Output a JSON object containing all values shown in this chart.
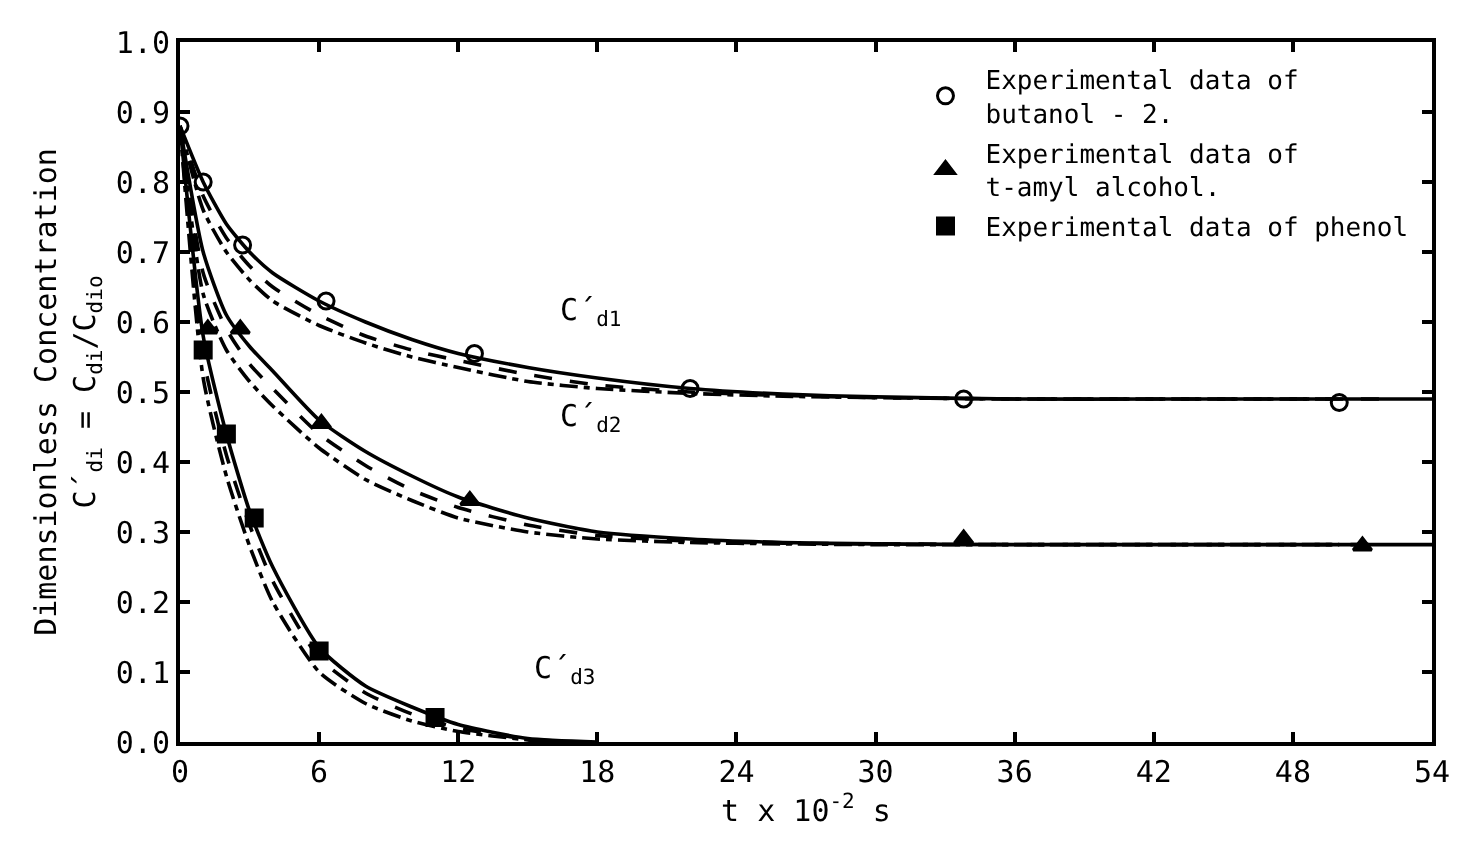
{
  "chart_data": {
    "type": "line",
    "xlabel": "t x 10$^{-2}$ s",
    "ylabel": "Dimensionless Concentration\nC´$_{di}$ = C$_{di}$/C$_{dio}$",
    "xlim": [
      0,
      54
    ],
    "xticks": [
      0,
      6,
      12,
      18,
      24,
      30,
      36,
      42,
      48,
      54
    ],
    "ylim": [
      0,
      1.0
    ],
    "yticks": [
      {
        "value": 0,
        "label": "0.0"
      },
      {
        "value": 0.1,
        "label": "0.1"
      },
      {
        "value": 0.2,
        "label": "0.2"
      },
      {
        "value": 0.3,
        "label": "0.3"
      },
      {
        "value": 0.4,
        "label": "0.4"
      },
      {
        "value": 0.5,
        "label": "0.5"
      },
      {
        "value": 0.6,
        "label": "0.6"
      },
      {
        "value": 0.7,
        "label": "0.7"
      },
      {
        "value": 0.8,
        "label": "0.8"
      },
      {
        "value": 0.9,
        "label": "0.9"
      },
      {
        "value": 1.0,
        "label": "1.0"
      }
    ],
    "legend": "top right",
    "annotations": [
      "C´$_{d1}$",
      "C´$_{d2}$",
      "C´$_{d3}$"
    ],
    "series": [
      {
        "type": "scatter",
        "name": "Experimental data of\nbutanol - 2.",
        "marker": "circle-open",
        "color": "#000000",
        "x": [
          0,
          1,
          2.7,
          6.3,
          12.7,
          22,
          33.8,
          50
        ],
        "values": [
          0.88,
          0.8,
          0.71,
          0.63,
          0.555,
          0.505,
          0.49,
          0.485
        ]
      },
      {
        "type": "scatter",
        "name": "Experimental data of\nt-amyl alcohol.",
        "marker": "triangle",
        "color": "#000000",
        "x": [
          1.2,
          2.6,
          6.1,
          12.5,
          22,
          33.8,
          51
        ],
        "values": [
          0.59,
          0.59,
          0.455,
          0.345,
          null,
          0.29,
          0.28
        ]
      },
      {
        "type": "scatter",
        "name": "Experimental data of phenol",
        "marker": "square",
        "color": "#000000",
        "x": [
          1.0,
          2.0,
          3.2,
          6.0,
          11.0
        ],
        "values": [
          0.56,
          0.44,
          0.32,
          0.13,
          0.035
        ]
      },
      {
        "line_style": "solid",
        "color": "#000000",
        "x": [
          0,
          1,
          2,
          3,
          4,
          6,
          8,
          10,
          12,
          15,
          18,
          22,
          26,
          30,
          36,
          42,
          48,
          54
        ],
        "values": [
          0.88,
          0.8,
          0.74,
          0.7,
          0.67,
          0.63,
          0.6,
          0.575,
          0.555,
          0.535,
          0.52,
          0.505,
          0.497,
          0.493,
          0.49,
          0.49,
          0.49,
          0.49
        ]
      },
      {
        "line_style": "dashed",
        "color": "#000000",
        "x": [
          0,
          1,
          2,
          3,
          4,
          6,
          8,
          10,
          12,
          15,
          18,
          22,
          26,
          30,
          36,
          42,
          48,
          52
        ],
        "values": [
          0.88,
          0.78,
          0.72,
          0.68,
          0.65,
          0.61,
          0.58,
          0.56,
          0.545,
          0.525,
          0.51,
          0.5,
          0.495,
          0.492,
          0.49,
          0.49,
          0.49,
          0.49
        ]
      },
      {
        "line_style": "dashdot",
        "color": "#000000",
        "x": [
          0,
          1,
          2,
          3,
          4,
          6,
          8,
          10,
          12,
          15,
          18,
          22,
          26,
          30,
          36,
          42,
          48,
          50
        ],
        "values": [
          0.88,
          0.76,
          0.7,
          0.66,
          0.63,
          0.595,
          0.57,
          0.55,
          0.535,
          0.515,
          0.505,
          0.498,
          0.494,
          0.492,
          0.49,
          0.49,
          0.49,
          0.49
        ]
      },
      {
        "line_style": "solid",
        "color": "#000000",
        "x": [
          0,
          1,
          2,
          3,
          4,
          6,
          8,
          10,
          12,
          15,
          18,
          22,
          26,
          30,
          36,
          42,
          48,
          54
        ],
        "values": [
          0.88,
          0.7,
          0.61,
          0.565,
          0.53,
          0.46,
          0.415,
          0.38,
          0.35,
          0.32,
          0.3,
          0.29,
          0.285,
          0.283,
          0.282,
          0.282,
          0.282,
          0.282
        ]
      },
      {
        "line_style": "dashed",
        "color": "#000000",
        "x": [
          0,
          1,
          2,
          3,
          4,
          6,
          8,
          10,
          12,
          15,
          18,
          22,
          26,
          30,
          36,
          42,
          48,
          52
        ],
        "values": [
          0.88,
          0.67,
          0.59,
          0.54,
          0.505,
          0.44,
          0.395,
          0.36,
          0.335,
          0.31,
          0.295,
          0.287,
          0.284,
          0.283,
          0.282,
          0.282,
          0.282,
          0.282
        ]
      },
      {
        "line_style": "dashdot",
        "color": "#000000",
        "x": [
          0,
          1,
          2,
          3,
          4,
          6,
          8,
          10,
          12,
          15,
          18,
          22,
          26,
          30,
          36,
          42,
          48,
          50
        ],
        "values": [
          0.88,
          0.64,
          0.56,
          0.515,
          0.48,
          0.42,
          0.375,
          0.345,
          0.32,
          0.3,
          0.29,
          0.285,
          0.283,
          0.282,
          0.282,
          0.282,
          0.282,
          0.282
        ]
      },
      {
        "line_style": "solid",
        "color": "#000000",
        "x": [
          0,
          1,
          2,
          3,
          4,
          6,
          8,
          10,
          12,
          15,
          18
        ],
        "values": [
          0.88,
          0.58,
          0.44,
          0.33,
          0.25,
          0.135,
          0.08,
          0.05,
          0.025,
          0.005,
          0
        ]
      },
      {
        "line_style": "dashed",
        "color": "#000000",
        "x": [
          0,
          1,
          2,
          3,
          4,
          6,
          8,
          10,
          12,
          15,
          17
        ],
        "values": [
          0.88,
          0.55,
          0.41,
          0.31,
          0.23,
          0.12,
          0.07,
          0.04,
          0.02,
          0.004,
          0
        ]
      },
      {
        "line_style": "dashdot",
        "color": "#000000",
        "x": [
          0,
          1,
          2,
          3,
          4,
          6,
          8,
          10,
          12,
          15,
          16
        ],
        "values": [
          0.88,
          0.52,
          0.38,
          0.28,
          0.2,
          0.1,
          0.055,
          0.03,
          0.015,
          0.003,
          0
        ]
      }
    ]
  }
}
